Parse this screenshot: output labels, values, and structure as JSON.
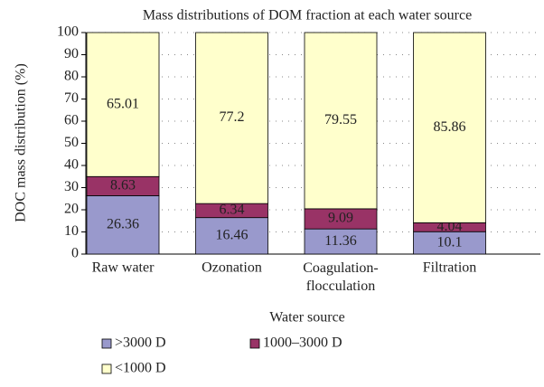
{
  "chart_data": {
    "type": "stacked_bar",
    "title": "Mass distributions of DOM fraction at each water source",
    "x_label": "Water source",
    "y_label": "DOC mass distribution (%)",
    "categories": [
      "Raw water",
      "Ozonation",
      "Coagulation-flocculation",
      "Filtration"
    ],
    "series": [
      {
        "name": ">3000 D",
        "color": "#9999cc",
        "values": [
          26.36,
          16.46,
          11.36,
          10.1
        ]
      },
      {
        "name": "1000–3000 D",
        "color": "#993366",
        "values": [
          8.63,
          6.34,
          9.09,
          4.04
        ]
      },
      {
        "name": "<1000 D",
        "color": "#ffffcc",
        "values": [
          65.01,
          77.2,
          79.55,
          85.86
        ]
      }
    ],
    "ylim": [
      0,
      100
    ],
    "yticks": [
      0,
      10,
      20,
      30,
      40,
      50,
      60,
      70,
      80,
      90,
      100
    ],
    "grid": true
  }
}
